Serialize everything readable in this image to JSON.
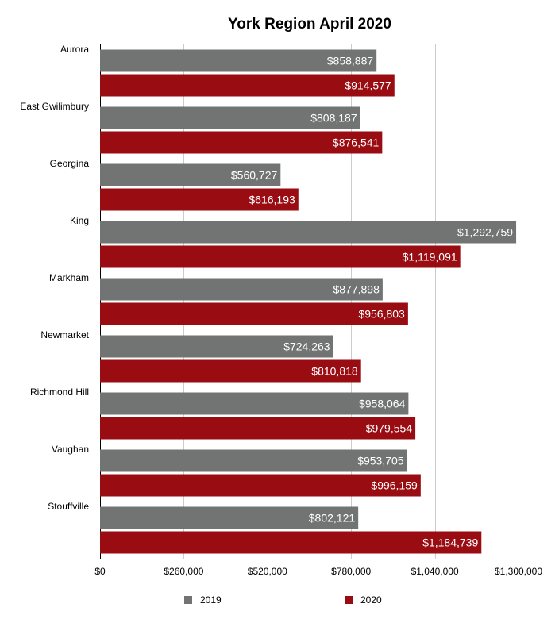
{
  "chart_data": {
    "type": "bar",
    "orientation": "horizontal",
    "title": "York Region April 2020",
    "categories": [
      "Aurora",
      "East Gwilimbury",
      "Georgina",
      "King",
      "Markham",
      "Newmarket",
      "Richmond Hill",
      "Vaughan",
      "Stouffville"
    ],
    "series": [
      {
        "name": "2019",
        "color": "#717472",
        "values": [
          858887,
          808187,
          560727,
          1292759,
          877898,
          724263,
          958064,
          953705,
          802121
        ],
        "labels": [
          "$858,887",
          "$808,187",
          "$560,727",
          "$1,292,759",
          "$877,898",
          "$724,263",
          "$958,064",
          "$953,705",
          "$802,121"
        ]
      },
      {
        "name": "2020",
        "color": "#990c12",
        "values": [
          914577,
          876541,
          616193,
          1119091,
          956803,
          810818,
          979554,
          996159,
          1184739
        ],
        "labels": [
          "$914,577",
          "$876,541",
          "$616,193",
          "$1,119,091",
          "$956,803",
          "$810,818",
          "$979,554",
          "$996,159",
          "$1,184,739"
        ]
      }
    ],
    "xlim": [
      0,
      1300000
    ],
    "ticks": [
      0,
      260000,
      520000,
      780000,
      1040000,
      1300000
    ],
    "tick_labels": [
      "$0",
      "$260,000",
      "$520,000",
      "$780,000",
      "$1,040,000",
      "$1,300,000"
    ],
    "grid": true,
    "legend_position": "bottom"
  }
}
